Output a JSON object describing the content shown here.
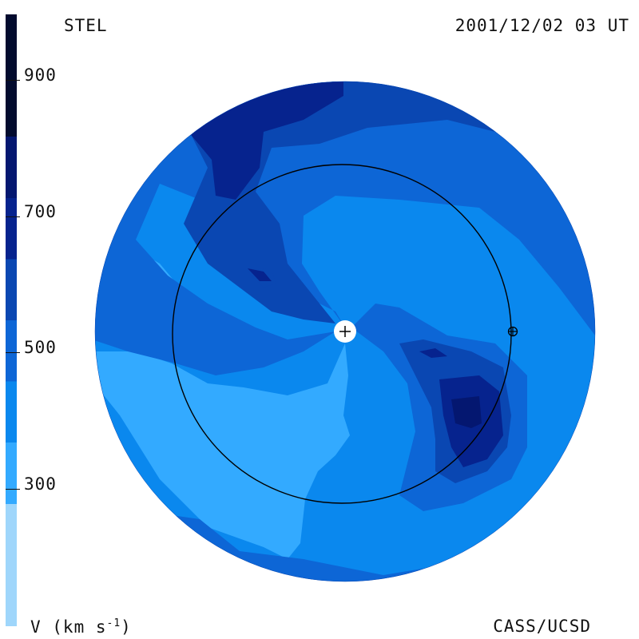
{
  "header": {
    "label": "STEL",
    "timestamp": "2001/12/02 03 UT"
  },
  "footer": {
    "units_base": "V (km s",
    "units_exp": "-1",
    "units_close": ")",
    "credit": "CASS/UCSD"
  },
  "colorbar": {
    "ticks": [
      "900",
      "700",
      "500",
      "300"
    ],
    "bands": [
      {
        "from": 0,
        "to": 200,
        "color": "#9fd6fb"
      },
      {
        "from": 200,
        "to": 300,
        "color": "#33aaff"
      },
      {
        "from": 300,
        "to": 400,
        "color": "#0a88ee"
      },
      {
        "from": 400,
        "to": 500,
        "color": "#0d66d6"
      },
      {
        "from": 500,
        "to": 600,
        "color": "#0a47b2"
      },
      {
        "from": 600,
        "to": 700,
        "color": "#06238e"
      },
      {
        "from": 700,
        "to": 800,
        "color": "#041770"
      },
      {
        "from": 800,
        "to": 1000,
        "color": "#020b2e"
      }
    ]
  },
  "map": {
    "markers": [
      {
        "name": "sun-marker",
        "symbol": "+"
      },
      {
        "name": "earth-marker",
        "symbol": "⊕"
      }
    ]
  }
}
